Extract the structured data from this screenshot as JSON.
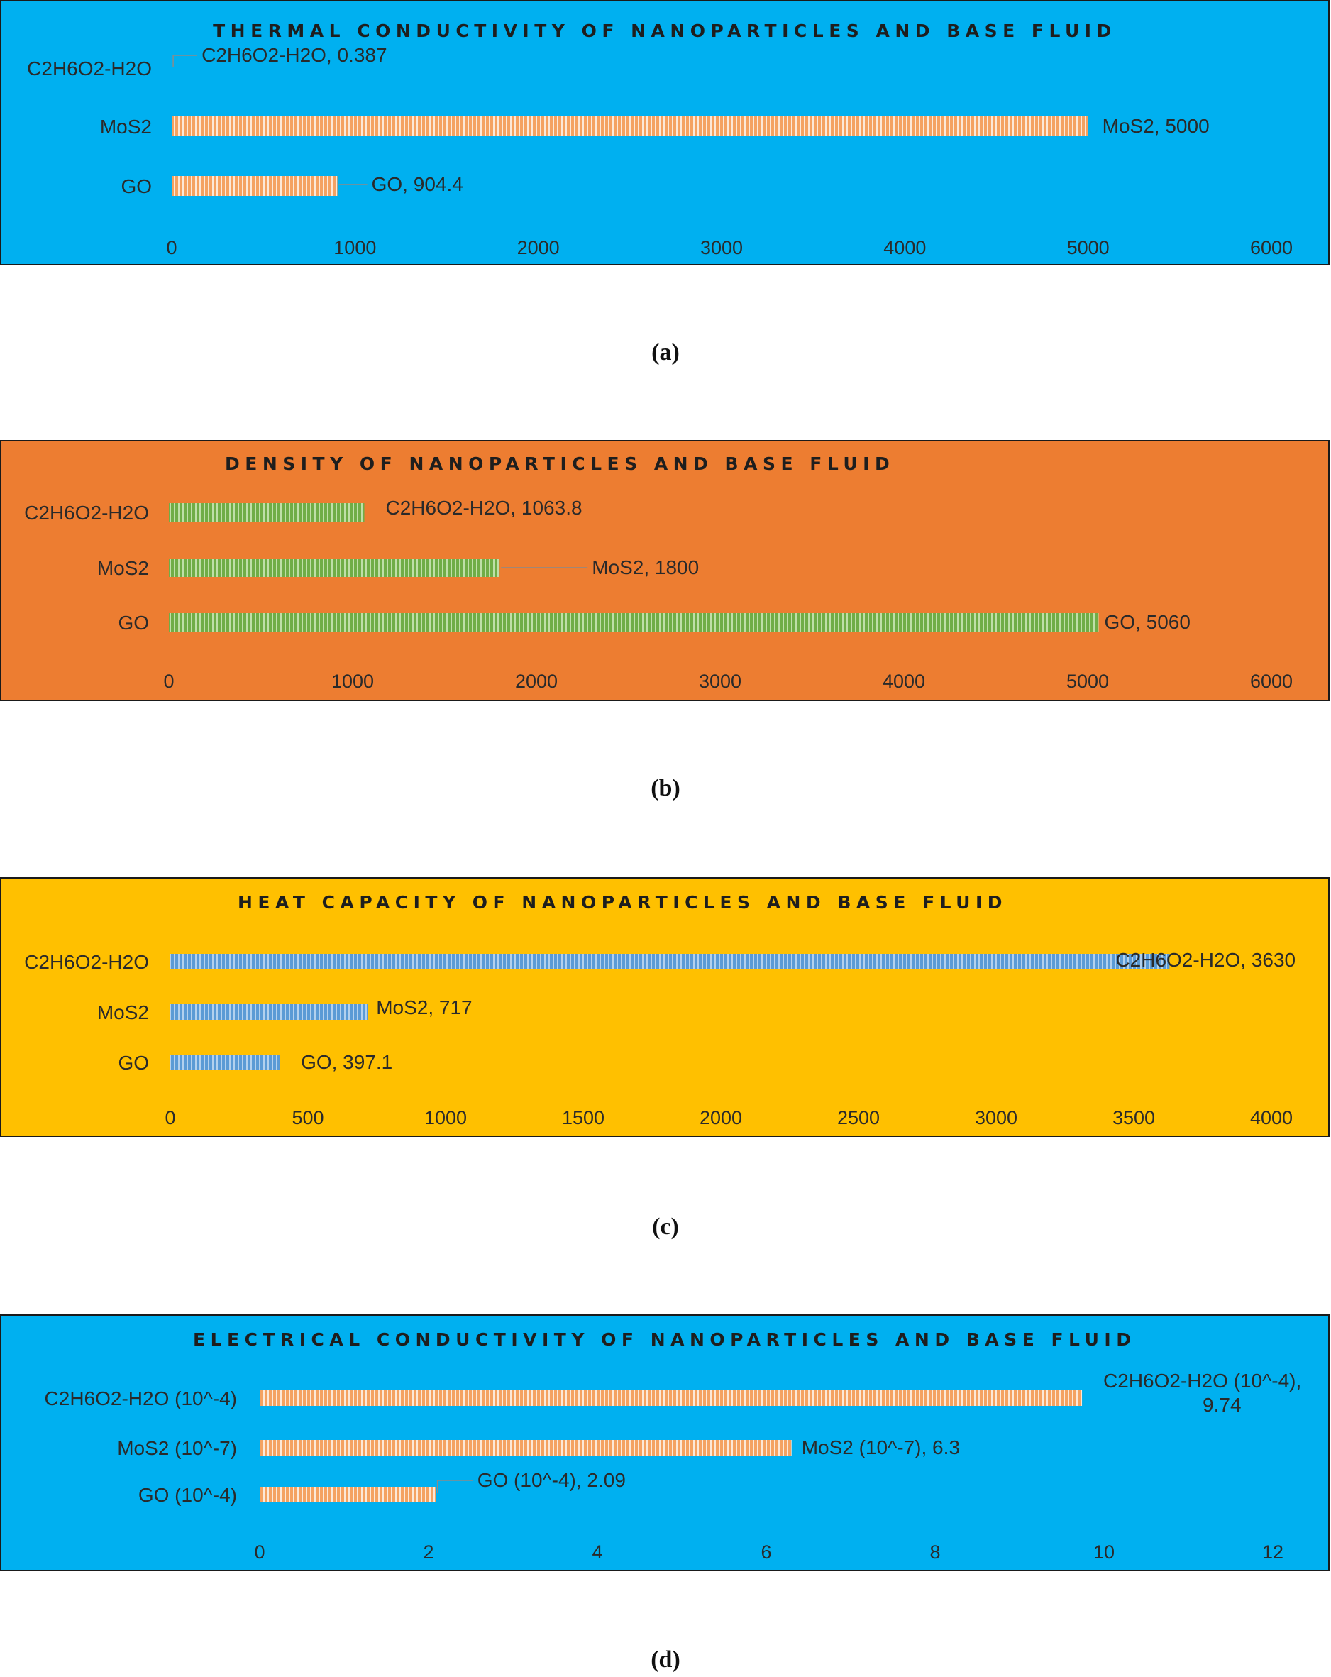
{
  "colors": {
    "panel_blue": "#00b0f0",
    "panel_orange": "#ed7d31",
    "panel_gold": "#ffc000",
    "bar_orange": "#f4a261",
    "bar_orange_stripe": "#ffffff",
    "bar_green": "#70ad47",
    "bar_green_stripe": "#d9f0c8",
    "bar_blue": "#5b9bd5",
    "bar_blue_stripe": "#cfe3f6"
  },
  "captions": [
    "(a)",
    "(b)",
    "(c)",
    "(d)"
  ],
  "chart_data": [
    {
      "type": "bar",
      "orientation": "horizontal",
      "title": "THERMAL CONDUCTIVITY OF NANOPARTICLES AND BASE FLUID",
      "categories": [
        "C2H6O2-H2O",
        "MoS2",
        "GO"
      ],
      "values": [
        0.387,
        5000,
        904.4
      ],
      "data_labels": [
        "C2H6O2-H2O, 0.387",
        "MoS2, 5000",
        "GO, 904.4"
      ],
      "xlim": [
        0,
        6000
      ],
      "x_ticks": [
        "0",
        "1000",
        "2000",
        "3000",
        "4000",
        "5000",
        "6000"
      ],
      "grid": false,
      "xlabel": "",
      "ylabel": ""
    },
    {
      "type": "bar",
      "orientation": "horizontal",
      "title": "DENSITY OF NANOPARTICLES AND BASE FLUID",
      "categories": [
        "C2H6O2-H2O",
        "MoS2",
        "GO"
      ],
      "values": [
        1063.8,
        1800,
        5060
      ],
      "data_labels": [
        "C2H6O2-H2O, 1063.8",
        "MoS2, 1800",
        "GO, 5060"
      ],
      "xlim": [
        0,
        6000
      ],
      "x_ticks": [
        "0",
        "1000",
        "2000",
        "3000",
        "4000",
        "5000",
        "6000"
      ],
      "grid": false,
      "xlabel": "",
      "ylabel": ""
    },
    {
      "type": "bar",
      "orientation": "horizontal",
      "title": "HEAT CAPACITY OF NANOPARTICLES AND BASE FLUID",
      "categories": [
        "C2H6O2-H2O",
        "MoS2",
        "GO"
      ],
      "values": [
        3630,
        717,
        397.1
      ],
      "data_labels": [
        "C2H6O2-H2O, 3630",
        "MoS2, 717",
        "GO, 397.1"
      ],
      "xlim": [
        0,
        4000
      ],
      "x_ticks": [
        "0",
        "500",
        "1000",
        "1500",
        "2000",
        "2500",
        "3000",
        "3500",
        "4000"
      ],
      "grid": false,
      "xlabel": "",
      "ylabel": ""
    },
    {
      "type": "bar",
      "orientation": "horizontal",
      "title": "ELECTRICAL CONDUCTIVITY OF NANOPARTICLES AND BASE FLUID",
      "categories": [
        "C2H6O2-H2O (10^-4)",
        "MoS2 (10^-7)",
        "GO (10^-4)"
      ],
      "values": [
        9.74,
        6.3,
        2.09
      ],
      "data_labels": [
        "C2H6O2-H2O (10^-4), 9.74",
        "MoS2 (10^-7), 6.3",
        "GO (10^-4), 2.09"
      ],
      "xlim": [
        0,
        12
      ],
      "x_ticks": [
        "0",
        "2",
        "4",
        "6",
        "8",
        "10",
        "12"
      ],
      "grid": false,
      "xlabel": "",
      "ylabel": ""
    }
  ]
}
